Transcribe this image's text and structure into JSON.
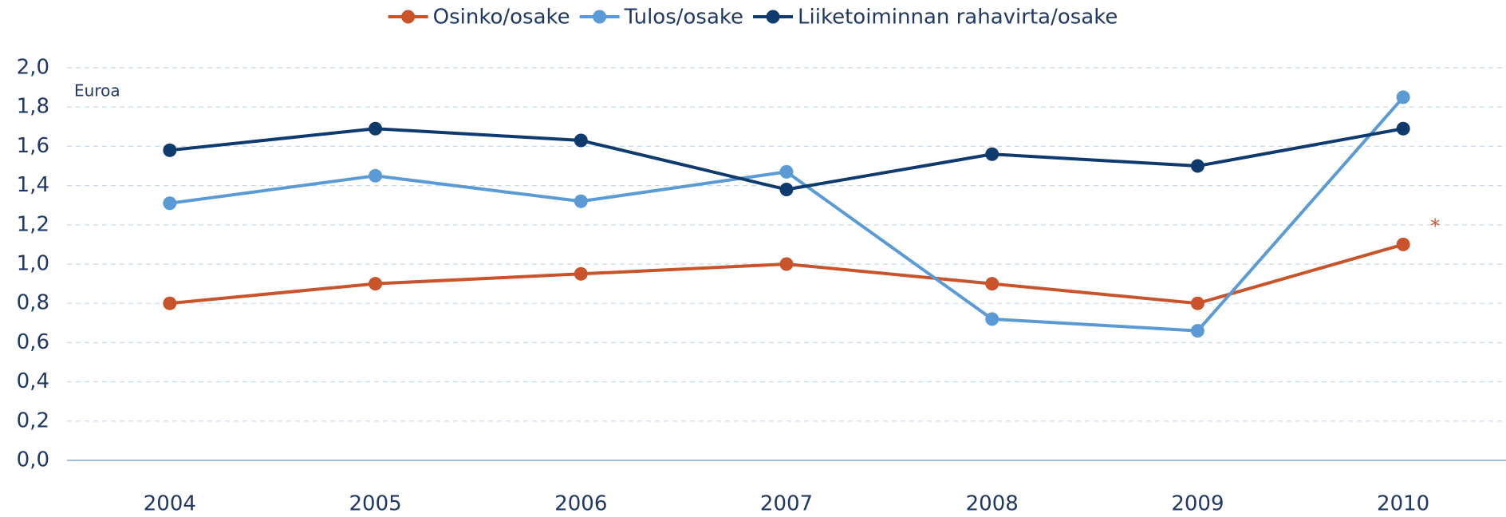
{
  "chart_data": {
    "type": "line",
    "ylabel": "Euroa",
    "annotations": [
      "*"
    ],
    "categories": [
      "2004",
      "2005",
      "2006",
      "2007",
      "2008",
      "2009",
      "2010"
    ],
    "series": [
      {
        "name": "Osinko/osake",
        "color": "#c9532a",
        "values": [
          0.8,
          0.9,
          0.95,
          1.0,
          0.9,
          0.8,
          1.1
        ]
      },
      {
        "name": "Tulos/osake",
        "color": "#5b9bd5",
        "values": [
          1.31,
          1.45,
          1.32,
          1.47,
          0.72,
          0.66,
          1.85
        ]
      },
      {
        "name": "Liiketoiminnan rahavirta/osake",
        "color": "#0e3a6e",
        "values": [
          1.58,
          1.69,
          1.63,
          1.38,
          1.56,
          1.5,
          1.69
        ]
      }
    ],
    "ylim": [
      0,
      2.0
    ],
    "yticks": [
      {
        "value": 0,
        "label": "0,0"
      },
      {
        "value": 0.2,
        "label": "0,2"
      },
      {
        "value": 0.4,
        "label": "0,4"
      },
      {
        "value": 0.6,
        "label": "0,6"
      },
      {
        "value": 0.8,
        "label": "0,8"
      },
      {
        "value": 1.0,
        "label": "1,0"
      },
      {
        "value": 1.2,
        "label": "1,2"
      },
      {
        "value": 1.4,
        "label": "1,4"
      },
      {
        "value": 1.6,
        "label": "1,6"
      },
      {
        "value": 1.8,
        "label": "1,8"
      },
      {
        "value": 2.0,
        "label": "2,0"
      }
    ],
    "grid": true,
    "legend": "top"
  }
}
